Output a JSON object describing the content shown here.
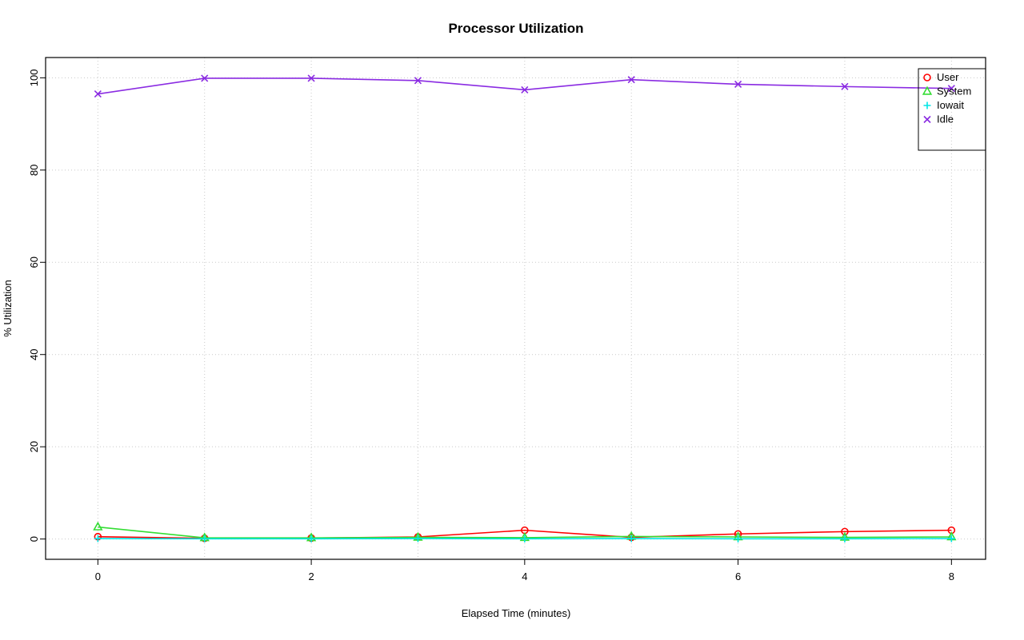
{
  "page": {
    "background": "#ffffff"
  },
  "chart_data": {
    "type": "line",
    "title": "Processor Utilization",
    "xlabel": "Elapsed Time (minutes)",
    "ylabel": "% Utilization",
    "x": [
      0,
      1,
      2,
      3,
      4,
      5,
      6,
      7,
      8
    ],
    "xlim": [
      -0.49,
      8.32
    ],
    "ylim": [
      -4.4,
      104.4
    ],
    "x_ticks": [
      0,
      2,
      4,
      6,
      8
    ],
    "y_ticks": [
      0,
      20,
      40,
      60,
      80,
      100
    ],
    "grid": {
      "on": true,
      "style": "dotted",
      "color": "#c9c9c9",
      "x_lines": [
        0,
        1,
        2,
        3,
        4,
        5,
        6,
        7,
        8
      ],
      "y_lines": [
        0,
        20,
        40,
        60,
        80,
        100
      ]
    },
    "legend": {
      "position": "top-right",
      "border": "#000000",
      "entries": [
        "User",
        "System",
        "Iowait",
        "Idle"
      ]
    },
    "axis_color": "#000000",
    "series": [
      {
        "name": "User",
        "color": "#ff0000",
        "marker": "circle",
        "values": [
          0.5,
          0.15,
          0.2,
          0.45,
          1.9,
          0.35,
          1.1,
          1.6,
          1.9
        ]
      },
      {
        "name": "System",
        "color": "#33dd33",
        "marker": "triangle",
        "values": [
          2.6,
          0.25,
          0.25,
          0.35,
          0.3,
          0.55,
          0.45,
          0.35,
          0.45
        ]
      },
      {
        "name": "Iowait",
        "color": "#00e5e5",
        "marker": "plus",
        "values": [
          0.1,
          0.05,
          0.05,
          0.1,
          0.05,
          0.1,
          0.05,
          0.05,
          0.1
        ]
      },
      {
        "name": "Idle",
        "color": "#8a2be2",
        "marker": "x",
        "values": [
          96.5,
          99.9,
          99.9,
          99.4,
          97.4,
          99.6,
          98.6,
          98.1,
          97.7
        ]
      }
    ]
  }
}
